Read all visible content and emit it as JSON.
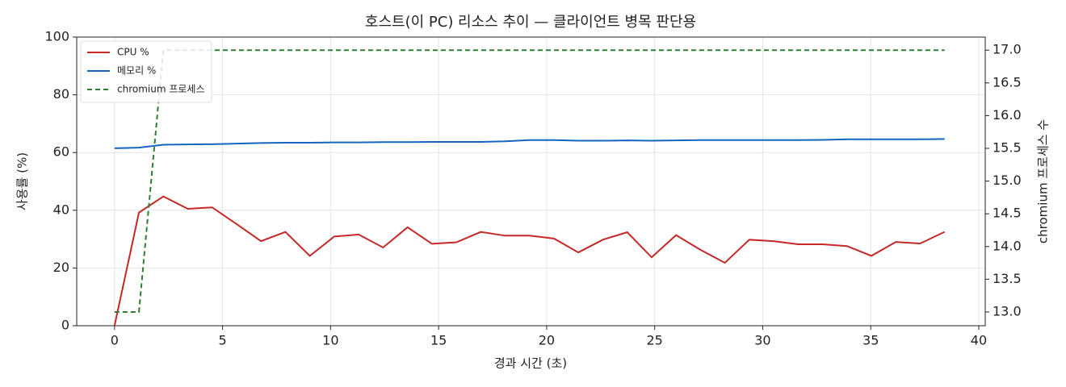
{
  "chart_data": {
    "type": "line",
    "title": "호스트(이 PC) 리소스 추이 — 클라이언트 병목 판단용",
    "xlabel": "경과 시간 (초)",
    "ylabel": "사용률 (%)",
    "y2label": "chromium 프로세스 수",
    "x": [
      0,
      1.13,
      2.26,
      3.39,
      4.52,
      5.65,
      6.78,
      7.91,
      9.04,
      10.17,
      11.3,
      12.43,
      13.56,
      14.69,
      15.82,
      16.95,
      18.08,
      19.21,
      20.34,
      21.47,
      22.6,
      23.73,
      24.86,
      25.99,
      27.12,
      28.25,
      29.38,
      30.51,
      31.64,
      32.77,
      33.9,
      35.03,
      36.16,
      37.29,
      38.42
    ],
    "series": [
      {
        "name": "CPU %",
        "color": "#c62828",
        "values": [
          0,
          39.2,
          44.8,
          40.5,
          41.0,
          35.2,
          29.3,
          32.5,
          24.2,
          30.9,
          31.6,
          27.1,
          34.1,
          28.4,
          28.9,
          32.5,
          31.2,
          31.2,
          30.2,
          25.4,
          29.8,
          32.4,
          23.7,
          31.4,
          26.3,
          21.8,
          29.8,
          29.3,
          28.2,
          28.2,
          27.6,
          24.2,
          29.0,
          28.5,
          32.5
        ]
      },
      {
        "name": "메모리 %",
        "color": "#1565c0",
        "values": [
          61.5,
          61.7,
          62.7,
          62.8,
          62.9,
          63.1,
          63.3,
          63.4,
          63.4,
          63.5,
          63.5,
          63.6,
          63.6,
          63.7,
          63.7,
          63.7,
          63.9,
          64.3,
          64.3,
          64.1,
          64.1,
          64.2,
          64.1,
          64.2,
          64.3,
          64.3,
          64.3,
          64.3,
          64.3,
          64.4,
          64.6,
          64.6,
          64.6,
          64.6,
          64.7
        ]
      },
      {
        "name": "chromium 프로세스",
        "color": "#2e7d32",
        "linestyle": "dashed",
        "axis": "y2",
        "values": [
          13,
          13,
          17,
          17,
          17,
          17,
          17,
          17,
          17,
          17,
          17,
          17,
          17,
          17,
          17,
          17,
          17,
          17,
          17,
          17,
          17,
          17,
          17,
          17,
          17,
          17,
          17,
          17,
          17,
          17,
          17,
          17,
          17,
          17,
          17
        ]
      }
    ],
    "xlim": [
      -1.75,
      40.3
    ],
    "xticks": [
      0,
      5,
      10,
      15,
      20,
      25,
      30,
      35,
      40
    ],
    "ylim": [
      0,
      100
    ],
    "yticks": [
      0,
      20,
      40,
      60,
      80,
      100
    ],
    "y2lim": [
      12.79,
      17.2
    ],
    "y2ticks": [
      {
        "value": 13,
        "label": "13.0"
      },
      13.5,
      {
        "value": 14,
        "label": "14.0"
      },
      14.5,
      {
        "value": 15,
        "label": "15.0"
      },
      15.5,
      {
        "value": 16,
        "label": "16.0"
      },
      16.5,
      {
        "value": 17,
        "label": "17.0"
      }
    ],
    "grid": true,
    "legend": "upper left"
  }
}
